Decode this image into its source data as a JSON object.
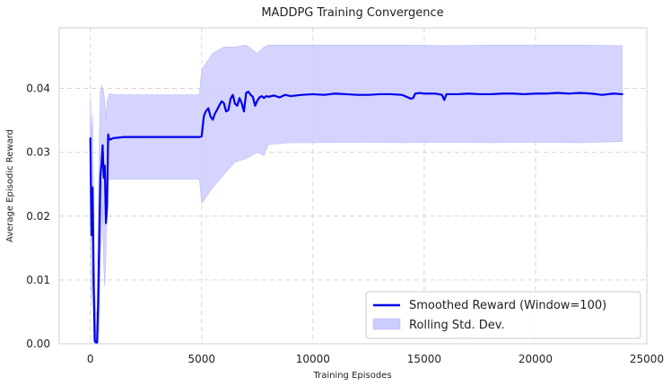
{
  "chart_data": {
    "type": "line",
    "title": "MADDPG Training Convergence",
    "xlabel": "Training Episodes",
    "ylabel": "Average Episodic Reward",
    "xlim": [
      -1400,
      25000
    ],
    "ylim": [
      0,
      0.0495
    ],
    "x_ticks": [
      0,
      5000,
      10000,
      15000,
      20000,
      25000
    ],
    "x_tick_labels": [
      "0",
      "5000",
      "10000",
      "15000",
      "20000",
      "25000"
    ],
    "y_ticks": [
      0.0,
      0.01,
      0.02,
      0.03,
      0.04
    ],
    "y_tick_labels": [
      "0.00",
      "0.01",
      "0.02",
      "0.03",
      "0.04"
    ],
    "grid": true,
    "legend_position": "bottom-right",
    "colors": {
      "line": "#0000ee",
      "band": "#ccccff",
      "grid": "#d6d6d6",
      "axes_border": "#cccccc"
    },
    "series": [
      {
        "name": "Smoothed Reward (Window=100)",
        "kind": "line",
        "x": [
          0,
          50,
          100,
          150,
          200,
          250,
          300,
          350,
          400,
          450,
          500,
          550,
          600,
          650,
          700,
          750,
          800,
          850,
          900,
          1000,
          1500,
          2000,
          2500,
          3000,
          3500,
          4000,
          4500,
          4900,
          5000,
          5100,
          5200,
          5300,
          5400,
          5500,
          5600,
          5700,
          5800,
          5900,
          6000,
          6100,
          6200,
          6300,
          6400,
          6500,
          6600,
          6700,
          6800,
          6900,
          7000,
          7100,
          7200,
          7300,
          7400,
          7500,
          7600,
          7700,
          7800,
          7900,
          8000,
          8250,
          8500,
          8750,
          9000,
          9500,
          10000,
          10500,
          11000,
          11500,
          12000,
          12500,
          13000,
          13500,
          14000,
          14400,
          14500,
          14600,
          14800,
          15000,
          15500,
          15800,
          15900,
          16000,
          16500,
          17000,
          17500,
          18000,
          18500,
          19000,
          19500,
          20000,
          20500,
          21000,
          21500,
          22000,
          22500,
          23000,
          23500,
          23900
        ],
        "y": [
          0.0322,
          0.017,
          0.0245,
          0.009,
          0.0005,
          0.0002,
          0.0002,
          0.0062,
          0.016,
          0.0262,
          0.0282,
          0.0311,
          0.026,
          0.0279,
          0.0189,
          0.0215,
          0.0328,
          0.032,
          0.032,
          0.0322,
          0.0324,
          0.0324,
          0.0324,
          0.0324,
          0.0324,
          0.0324,
          0.0324,
          0.0324,
          0.0325,
          0.0357,
          0.0365,
          0.0369,
          0.0356,
          0.0351,
          0.0361,
          0.0367,
          0.0374,
          0.038,
          0.0377,
          0.0364,
          0.0366,
          0.0384,
          0.039,
          0.0376,
          0.0373,
          0.0385,
          0.0377,
          0.0364,
          0.0393,
          0.0395,
          0.039,
          0.0387,
          0.0373,
          0.0381,
          0.0386,
          0.0388,
          0.0385,
          0.0388,
          0.0387,
          0.0389,
          0.0386,
          0.039,
          0.0388,
          0.039,
          0.0391,
          0.039,
          0.0392,
          0.0391,
          0.039,
          0.039,
          0.0391,
          0.0391,
          0.039,
          0.0384,
          0.0385,
          0.0392,
          0.0393,
          0.0392,
          0.0392,
          0.039,
          0.0382,
          0.0391,
          0.0391,
          0.0392,
          0.0391,
          0.0391,
          0.0392,
          0.0392,
          0.0391,
          0.0392,
          0.0392,
          0.0393,
          0.0392,
          0.0393,
          0.0392,
          0.039,
          0.0392,
          0.0391
        ]
      },
      {
        "name": "Rolling Std. Dev.",
        "kind": "band",
        "x": [
          0,
          50,
          100,
          150,
          200,
          250,
          300,
          350,
          400,
          450,
          500,
          550,
          600,
          650,
          700,
          750,
          800,
          850,
          900,
          1000,
          2000,
          3000,
          4000,
          4900,
          5000,
          5500,
          6000,
          6500,
          7000,
          7500,
          7800,
          8000,
          9000,
          10000,
          12000,
          14000,
          16000,
          18000,
          20000,
          22000,
          23900
        ],
        "upper": [
          0.0385,
          0.032,
          0.036,
          0.022,
          0.0085,
          0.0045,
          0.0055,
          0.02,
          0.032,
          0.0395,
          0.0405,
          0.04,
          0.0395,
          0.0375,
          0.035,
          0.038,
          0.0385,
          0.0392,
          0.0392,
          0.039,
          0.039,
          0.039,
          0.039,
          0.039,
          0.043,
          0.0455,
          0.0465,
          0.0465,
          0.0468,
          0.0455,
          0.0465,
          0.0468,
          0.0468,
          0.0468,
          0.0468,
          0.0468,
          0.0467,
          0.0468,
          0.0468,
          0.0468,
          0.0467
        ],
        "lower": [
          0.026,
          0.006,
          0.012,
          0.0,
          0.0,
          0.0,
          0.0,
          0.0,
          0.003,
          0.014,
          0.016,
          0.022,
          0.012,
          0.009,
          0.014,
          0.025,
          0.0258,
          0.0258,
          0.0258,
          0.0258,
          0.0258,
          0.0258,
          0.0258,
          0.0258,
          0.022,
          0.0245,
          0.0265,
          0.0285,
          0.029,
          0.03,
          0.0295,
          0.0312,
          0.0315,
          0.0315,
          0.0316,
          0.0315,
          0.0316,
          0.0315,
          0.0316,
          0.0315,
          0.0317
        ]
      }
    ]
  }
}
